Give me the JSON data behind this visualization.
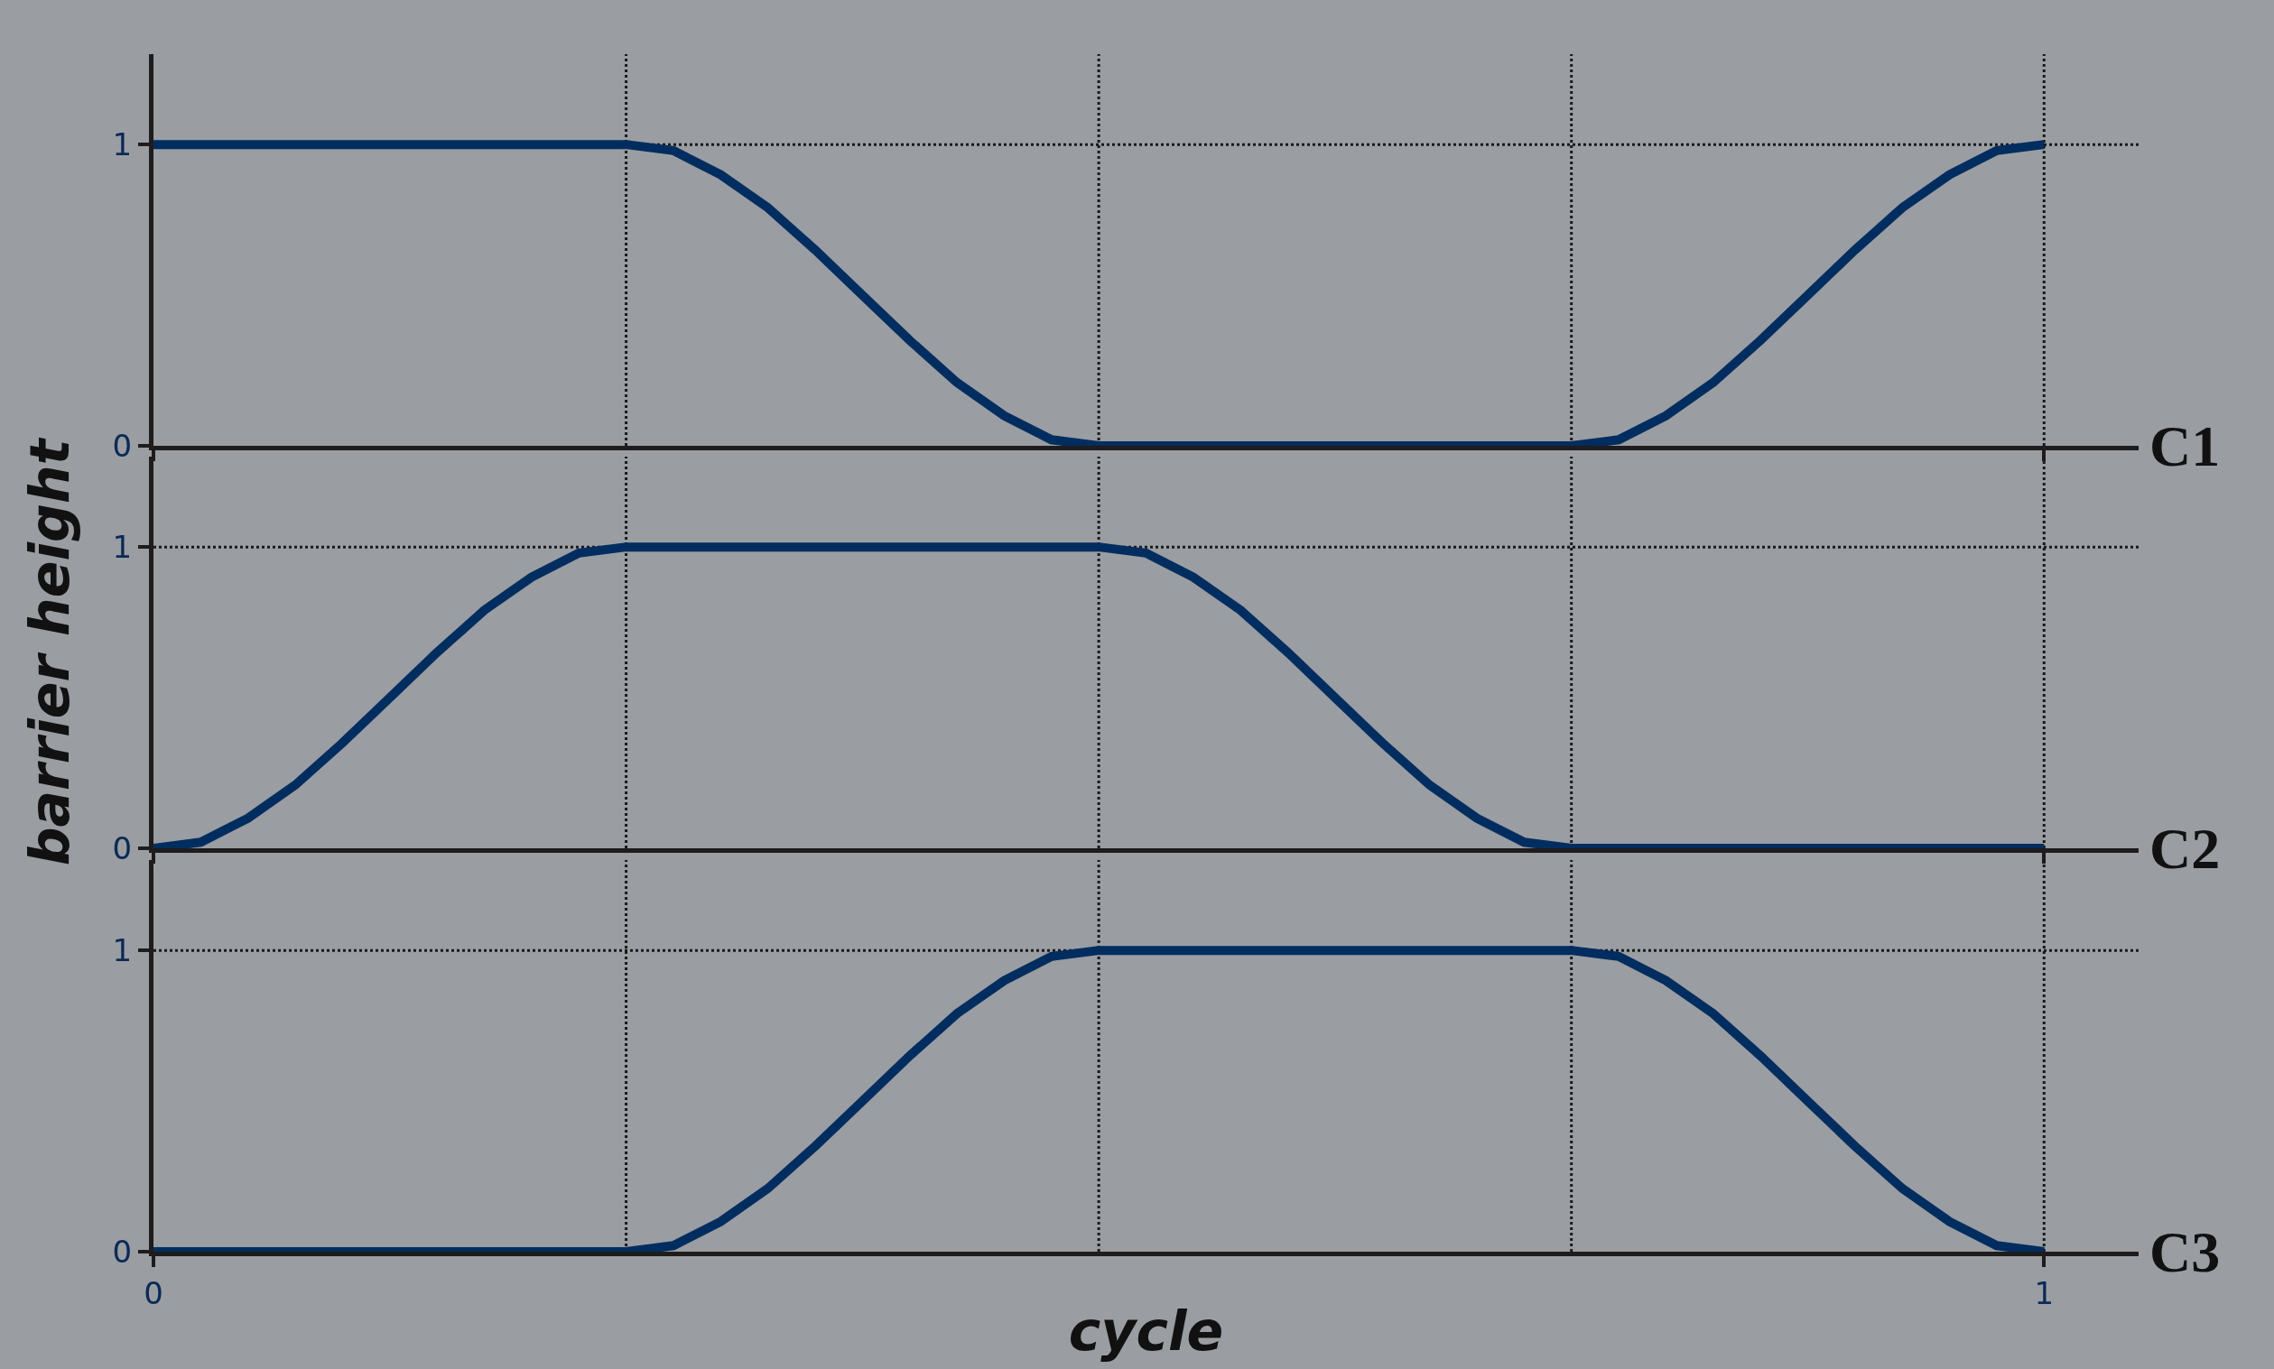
{
  "chart_data": [
    {
      "type": "line",
      "annotations": [
        "C1"
      ],
      "tick_labels": "y",
      "grid": false,
      "line_style": "solid",
      "marker": "none",
      "xlim": [
        0,
        1.05
      ],
      "ylim": [
        0,
        1.3
      ],
      "yticks": [
        0,
        1
      ],
      "xticks": [
        0,
        1
      ],
      "ref_lines": [
        {
          "axis": "y",
          "value": 1,
          "line_style": "dotted",
          "color": "#1a1a1a"
        },
        {
          "axis": "x",
          "value": 0.25,
          "line_style": "dotted",
          "color": "#1a1a1a"
        },
        {
          "axis": "x",
          "value": 0.5,
          "line_style": "dotted",
          "color": "#1a1a1a"
        },
        {
          "axis": "x",
          "value": 0.75,
          "line_style": "dotted",
          "color": "#1a1a1a"
        },
        {
          "axis": "x",
          "value": 1,
          "line_style": "dotted",
          "color": "#1a1a1a"
        }
      ],
      "series": [
        {
          "color": "#002d5f",
          "x": [
            0,
            0.25,
            0.275,
            0.3,
            0.325,
            0.35,
            0.375,
            0.4,
            0.425,
            0.45,
            0.475,
            0.5,
            0.75,
            0.775,
            0.8,
            0.825,
            0.85,
            0.875,
            0.9,
            0.925,
            0.95,
            0.975,
            1
          ],
          "values": [
            1,
            1,
            0.98,
            0.9,
            0.79,
            0.65,
            0.5,
            0.35,
            0.21,
            0.1,
            0.02,
            0,
            0,
            0.02,
            0.1,
            0.21,
            0.35,
            0.5,
            0.65,
            0.79,
            0.9,
            0.98,
            1
          ]
        }
      ]
    },
    {
      "type": "line",
      "annotations": [
        "C2"
      ],
      "ylabel": "barrier height",
      "tick_labels": "y",
      "grid": false,
      "line_style": "solid",
      "marker": "none",
      "xlim": [
        0,
        1.05
      ],
      "ylim": [
        0,
        1.3
      ],
      "yticks": [
        0,
        1
      ],
      "xticks": [
        0,
        1
      ],
      "ref_lines": [
        {
          "axis": "y",
          "value": 1,
          "line_style": "dotted",
          "color": "#1a1a1a"
        },
        {
          "axis": "x",
          "value": 0.25,
          "line_style": "dotted",
          "color": "#1a1a1a"
        },
        {
          "axis": "x",
          "value": 0.5,
          "line_style": "dotted",
          "color": "#1a1a1a"
        },
        {
          "axis": "x",
          "value": 0.75,
          "line_style": "dotted",
          "color": "#1a1a1a"
        },
        {
          "axis": "x",
          "value": 1,
          "line_style": "dotted",
          "color": "#1a1a1a"
        }
      ],
      "series": [
        {
          "color": "#002d5f",
          "x": [
            0,
            0.025,
            0.05,
            0.075,
            0.1,
            0.125,
            0.15,
            0.175,
            0.2,
            0.225,
            0.25,
            0.5,
            0.525,
            0.55,
            0.575,
            0.6,
            0.625,
            0.65,
            0.675,
            0.7,
            0.725,
            0.75,
            1
          ],
          "values": [
            0,
            0.02,
            0.1,
            0.21,
            0.35,
            0.5,
            0.65,
            0.79,
            0.9,
            0.98,
            1,
            1,
            0.98,
            0.9,
            0.79,
            0.65,
            0.5,
            0.35,
            0.21,
            0.1,
            0.02,
            0,
            0
          ]
        }
      ]
    },
    {
      "type": "line",
      "annotations": [
        "C3"
      ],
      "xlabel": "cycle",
      "grid": false,
      "line_style": "solid",
      "marker": "none",
      "xlim": [
        0,
        1.05
      ],
      "ylim": [
        0,
        1.3
      ],
      "yticks": [
        0,
        1
      ],
      "xticks": [
        0,
        1
      ],
      "ref_lines": [
        {
          "axis": "y",
          "value": 1,
          "line_style": "dotted",
          "color": "#1a1a1a"
        },
        {
          "axis": "x",
          "value": 0.25,
          "line_style": "dotted",
          "color": "#1a1a1a"
        },
        {
          "axis": "x",
          "value": 0.5,
          "line_style": "dotted",
          "color": "#1a1a1a"
        },
        {
          "axis": "x",
          "value": 0.75,
          "line_style": "dotted",
          "color": "#1a1a1a"
        },
        {
          "axis": "x",
          "value": 1,
          "line_style": "dotted",
          "color": "#1a1a1a"
        }
      ],
      "series": [
        {
          "color": "#002d5f",
          "x": [
            0,
            0.25,
            0.275,
            0.3,
            0.325,
            0.35,
            0.375,
            0.4,
            0.425,
            0.45,
            0.475,
            0.5,
            0.75,
            0.775,
            0.8,
            0.825,
            0.85,
            0.875,
            0.9,
            0.925,
            0.95,
            0.975,
            1
          ],
          "values": [
            0,
            0,
            0.02,
            0.1,
            0.21,
            0.35,
            0.5,
            0.65,
            0.79,
            0.9,
            0.98,
            1,
            1,
            0.98,
            0.9,
            0.79,
            0.65,
            0.5,
            0.35,
            0.21,
            0.1,
            0.02,
            0
          ]
        }
      ]
    }
  ]
}
